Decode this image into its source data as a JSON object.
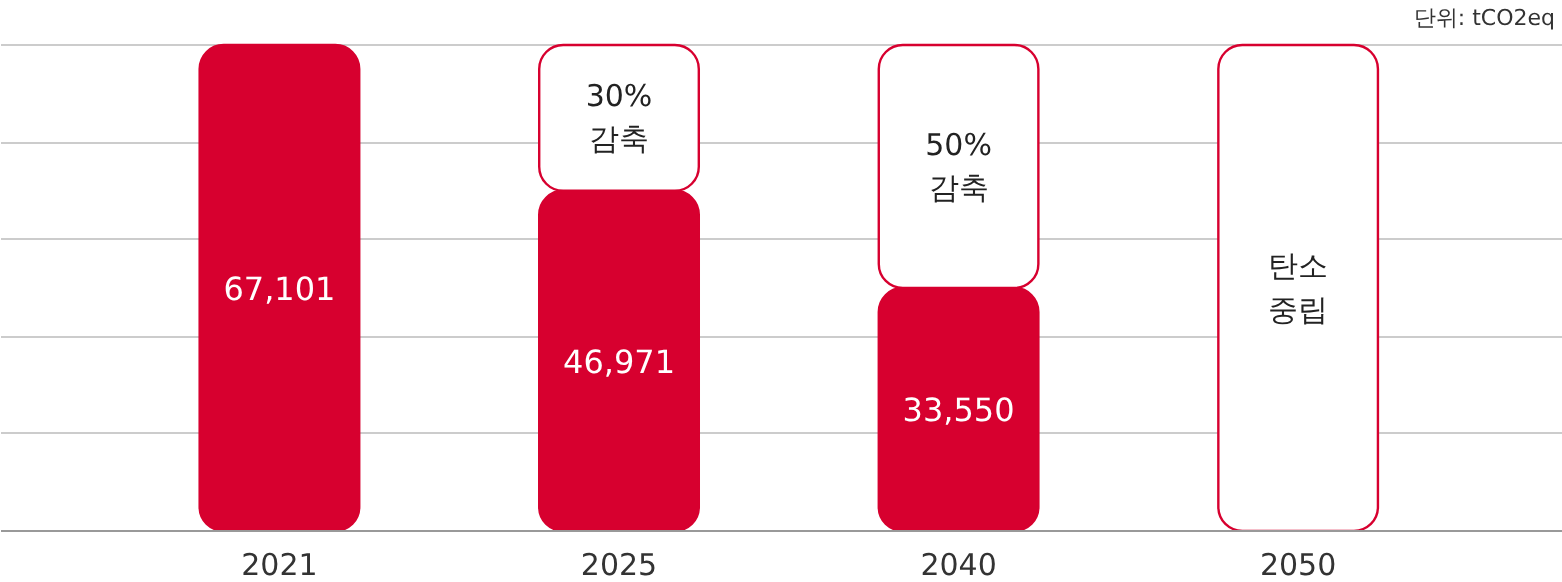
{
  "chart_data": {
    "type": "bar",
    "categories": [
      "2021",
      "2025",
      "2040",
      "2050"
    ],
    "stacked": true,
    "series": [
      {
        "color": "#d7002f",
        "values": [
          67101,
          46971,
          33550,
          null
        ],
        "value_labels": [
          "67,101",
          "46,971",
          "33,550",
          null
        ]
      },
      {
        "color": "#ffffff",
        "values": [
          null,
          20130,
          33551,
          67101
        ]
      }
    ],
    "yticks": [
      {
        "value": 0,
        "label": null
      },
      {
        "value": 13420,
        "label": null
      },
      {
        "value": 26840,
        "label": null
      },
      {
        "value": 40260,
        "label": null
      },
      {
        "value": 53680,
        "label": null
      },
      {
        "value": 67100,
        "label": null
      }
    ],
    "grid": "y",
    "tick_labels": "x",
    "annotations": [
      "단위: tCO2eq",
      "30%\n감축",
      "50%\n감축",
      "탄소\n중립"
    ]
  }
}
